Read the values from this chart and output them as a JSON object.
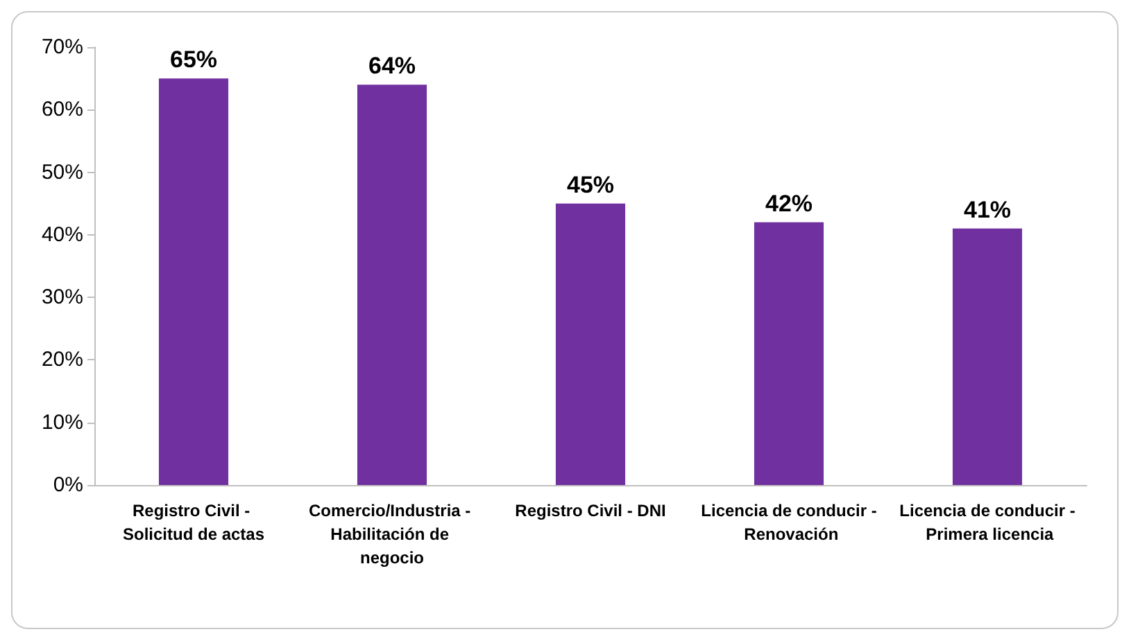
{
  "chart_data": {
    "type": "bar",
    "categories": [
      "Registro Civil - Solicitud de actas",
      "Comercio/Industria - Habilitación de negocio",
      "Registro Civil - DNI",
      "Licencia de conducir - Renovación",
      "Licencia de conducir - Primera licencia"
    ],
    "values": [
      65,
      64,
      45,
      42,
      41
    ],
    "color": "#7030a0",
    "value_labels": [
      "65%",
      "64%",
      "45%",
      "42%",
      "41%"
    ],
    "ylim": [
      0,
      70
    ],
    "yticks": [
      {
        "value": 0,
        "label": "0%"
      },
      {
        "value": 10,
        "label": "10%"
      },
      {
        "value": 20,
        "label": "20%"
      },
      {
        "value": 30,
        "label": "30%"
      },
      {
        "value": 40,
        "label": "40%"
      },
      {
        "value": 50,
        "label": "50%"
      },
      {
        "value": 60,
        "label": "60%"
      },
      {
        "value": 70,
        "label": "70%"
      }
    ]
  }
}
